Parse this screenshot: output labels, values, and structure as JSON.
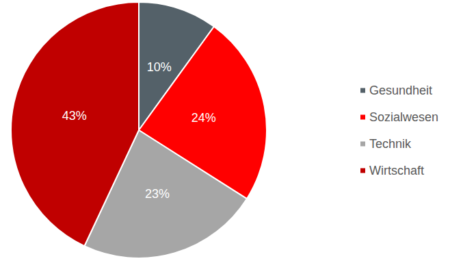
{
  "chart_data": {
    "type": "pie",
    "categories": [
      "Gesundheit",
      "Sozialwesen",
      "Technik",
      "Wirtschaft"
    ],
    "values": [
      10,
      24,
      23,
      43
    ],
    "value_labels": [
      "10%",
      "24%",
      "23%",
      "43%"
    ],
    "colors": [
      "#546169",
      "#ff0000",
      "#a6a6a6",
      "#c00000"
    ],
    "data_labels": true,
    "legend": "right"
  }
}
